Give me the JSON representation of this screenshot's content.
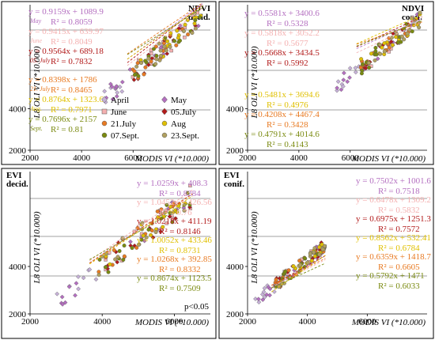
{
  "colors": {
    "April": "#c6b1d8",
    "May": "#b46fc0",
    "June": "#f4b0b0",
    "05.July": "#b21a1a",
    "21.July": "#e87a22",
    "Aug": "#e0c000",
    "07.Sept.": "#7a8a10",
    "23.Sept.": "#b0a060"
  },
  "chart_data": [
    {
      "type": "scatter",
      "id": "ndvi-decid",
      "title": [
        "NDVI",
        "decid."
      ],
      "xlabel": "MODIS VI (*10.000)",
      "ylabel": "L8 OLI VI (*10.000)",
      "xlim": [
        2000,
        9000
      ],
      "ylim": [
        2000,
        9000
      ],
      "xticks": [
        "2000",
        "4000",
        "6000"
      ],
      "yticks": [
        "2000",
        "4000"
      ],
      "cluster": {
        "x": [
          4800,
          8700
        ],
        "y": [
          4400,
          8500
        ]
      },
      "regressions": [
        {
          "series": "May",
          "eq": "y = 0.9159x + 1089.9",
          "r2": "R² = 0.8059",
          "month": "May"
        },
        {
          "series": "June",
          "eq": "y = 0.9415x + 639.97",
          "r2": "R² = 0.8049",
          "month": "June"
        },
        {
          "series": "05.July",
          "eq": "y = 0.9564x + 689.18",
          "r2": "R² = 0.7832",
          "month": "05. July"
        },
        {
          "series": "21.July",
          "eq": "y = 0.8398x + 1786",
          "r2": "R² = 0.8465",
          "month": "21. July"
        },
        {
          "series": "Aug",
          "eq": "y = 0.8764x + 1323.6",
          "r2": "R² = 0.7971",
          "month": "Aug."
        },
        {
          "series": "07.Sept.",
          "eq": "y = 0.7696x + 2157",
          "r2": "R² = 0.81",
          "month": "Sept."
        }
      ]
    },
    {
      "type": "scatter",
      "id": "ndvi-conif",
      "title": [
        "NDVI",
        "conif."
      ],
      "xlabel": "MODIS VI (*10.000)",
      "ylabel": "L8 OLI VI (*10.000)",
      "xlim": [
        2000,
        9000
      ],
      "ylim": [
        2000,
        9000
      ],
      "xticks": [
        "2000",
        "4000",
        "6000"
      ],
      "yticks": [
        "2000",
        "4000"
      ],
      "cluster": {
        "x": [
          5400,
          8800
        ],
        "y": [
          5000,
          8400
        ]
      },
      "regressions": [
        {
          "series": "May",
          "eq": "y = 0.5581x + 3400.6",
          "r2": "R² = 0.5328"
        },
        {
          "series": "June",
          "eq": "y = 0.5818x + 3052.2",
          "r2": "R² = 0.5677"
        },
        {
          "series": "05.July",
          "eq": "y = 0.5668x + 3434.5",
          "r2": "R² = 0.5992"
        },
        {
          "series": "Aug",
          "eq": "y = 0.5481x + 3694.6",
          "r2": "R² = 0.4976"
        },
        {
          "series": "21.July",
          "eq": "y = 0.4208x + 4467.4",
          "r2": "R² = 0.3428"
        },
        {
          "series": "07.Sept.",
          "eq": "y = 0.4791x + 4014.6",
          "r2": "R² = 0.4143"
        }
      ]
    },
    {
      "type": "scatter",
      "id": "evi-decid",
      "title": [
        "EVI",
        "decid."
      ],
      "xlabel": "MODIS VI (*10.000)",
      "ylabel": "L8 OLI VI (*10.000)",
      "xlim": [
        2000,
        7000
      ],
      "ylim": [
        2000,
        8000
      ],
      "xticks": [
        "2000",
        "4000",
        "6000"
      ],
      "yticks": [
        "2000",
        "4000"
      ],
      "cluster": {
        "x": [
          2700,
          6500
        ],
        "y": [
          2500,
          7000
        ]
      },
      "note": "p<0.05",
      "regressions": [
        {
          "series": "May",
          "eq": "y = 1.0259x + 408.3",
          "r2": "R² = 0.8284"
        },
        {
          "series": "June",
          "eq": "y = 1.0452x + 426.56",
          "r2": "R² = 0.76"
        },
        {
          "series": "05.July",
          "eq": "y = 1.0218x + 411.19",
          "r2": "R² = 0.8146"
        },
        {
          "series": "Aug",
          "eq": "y = 1.0052x + 433.46",
          "r2": "R² = 0.8731"
        },
        {
          "series": "21.July",
          "eq": "y = 1.0268x + 392.85",
          "r2": "R² = 0.8332"
        },
        {
          "series": "07.Sept.",
          "eq": "y = 0.8674x + 1123.5",
          "r2": "R² = 0.7509"
        }
      ]
    },
    {
      "type": "scatter",
      "id": "evi-conif",
      "title": [
        "EVI",
        "conif."
      ],
      "xlabel": "MODIS VI (*10.000)",
      "ylabel": "L8 OLI VI (*10.000)",
      "xlim": [
        2000,
        8000
      ],
      "ylim": [
        2000,
        8000
      ],
      "xticks": [
        "2000",
        "4000",
        "6000"
      ],
      "yticks": [
        "2000",
        "4000"
      ],
      "cluster": {
        "x": [
          2200,
          4600
        ],
        "y": [
          2500,
          4900
        ]
      },
      "regressions": [
        {
          "series": "May",
          "eq": "y = 0.7502x + 1001.6",
          "r2": "R² = 0.7518"
        },
        {
          "series": "June",
          "eq": "y = 0.6478x + 1309.2",
          "r2": "R² = 0.5832"
        },
        {
          "series": "05.July",
          "eq": "y = 0.6975x + 1251.3",
          "r2": "R² = 0.7572"
        },
        {
          "series": "Aug",
          "eq": "y = 0.8562x + 532.41",
          "r2": "R² = 0.6784"
        },
        {
          "series": "21.July",
          "eq": "y = 0.6359x + 1418.7",
          "r2": "R² = 0.6605"
        },
        {
          "series": "07.Sept.",
          "eq": "y = 0.5792x + 1471",
          "r2": "R² = 0.6033"
        }
      ]
    }
  ],
  "legend": {
    "placement": "inside-right of NDVI decid. panel",
    "entries": [
      {
        "series": "April",
        "label": "April",
        "shape": "diamond"
      },
      {
        "series": "May",
        "label": "May",
        "shape": "diamond"
      },
      {
        "series": "June",
        "label": "June",
        "shape": "square"
      },
      {
        "series": "05.July",
        "label": "05.July",
        "shape": "diamond"
      },
      {
        "series": "21.July",
        "label": "21.July",
        "shape": "circle"
      },
      {
        "series": "Aug",
        "label": "Aug",
        "shape": "circle"
      },
      {
        "series": "07.Sept.",
        "label": "07.Sept.",
        "shape": "circle"
      },
      {
        "series": "23.Sept.",
        "label": "23.Sept.",
        "shape": "circle"
      }
    ]
  }
}
